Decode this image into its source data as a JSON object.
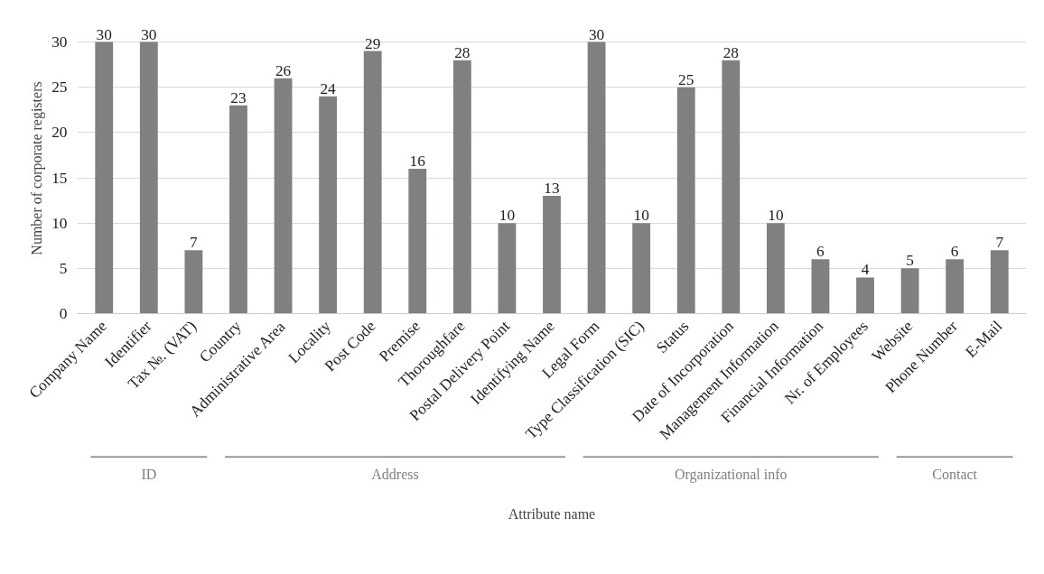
{
  "chart_data": {
    "type": "bar",
    "xlabel": "Attribute name",
    "ylabel": "Number of corporate registers",
    "categories": [
      "Company Name",
      "Identifier",
      "Tax №. (VAT)",
      "Country",
      "Administrative Area",
      "Locality",
      "Post Code",
      "Premise",
      "Thoroughfare",
      "Postal Delivery Point",
      "Identifying Name",
      "Legal Form",
      "Type Classification (SIC)",
      "Status",
      "Date of Incorporation",
      "Management Information",
      "Financial Information",
      "Nr. of Employees",
      "Website",
      "Phone Number",
      "E-Mail"
    ],
    "values": [
      30,
      30,
      7,
      23,
      26,
      24,
      29,
      16,
      28,
      10,
      13,
      30,
      10,
      25,
      28,
      10,
      6,
      4,
      5,
      6,
      7
    ],
    "color": "#808080",
    "ylim": [
      0,
      30
    ],
    "yticks": [
      0,
      5,
      10,
      15,
      20,
      25,
      30
    ],
    "grid": "y",
    "data_labels": true,
    "annotations": [
      "ID",
      "Address",
      "Organizational info",
      "Contact"
    ]
  }
}
